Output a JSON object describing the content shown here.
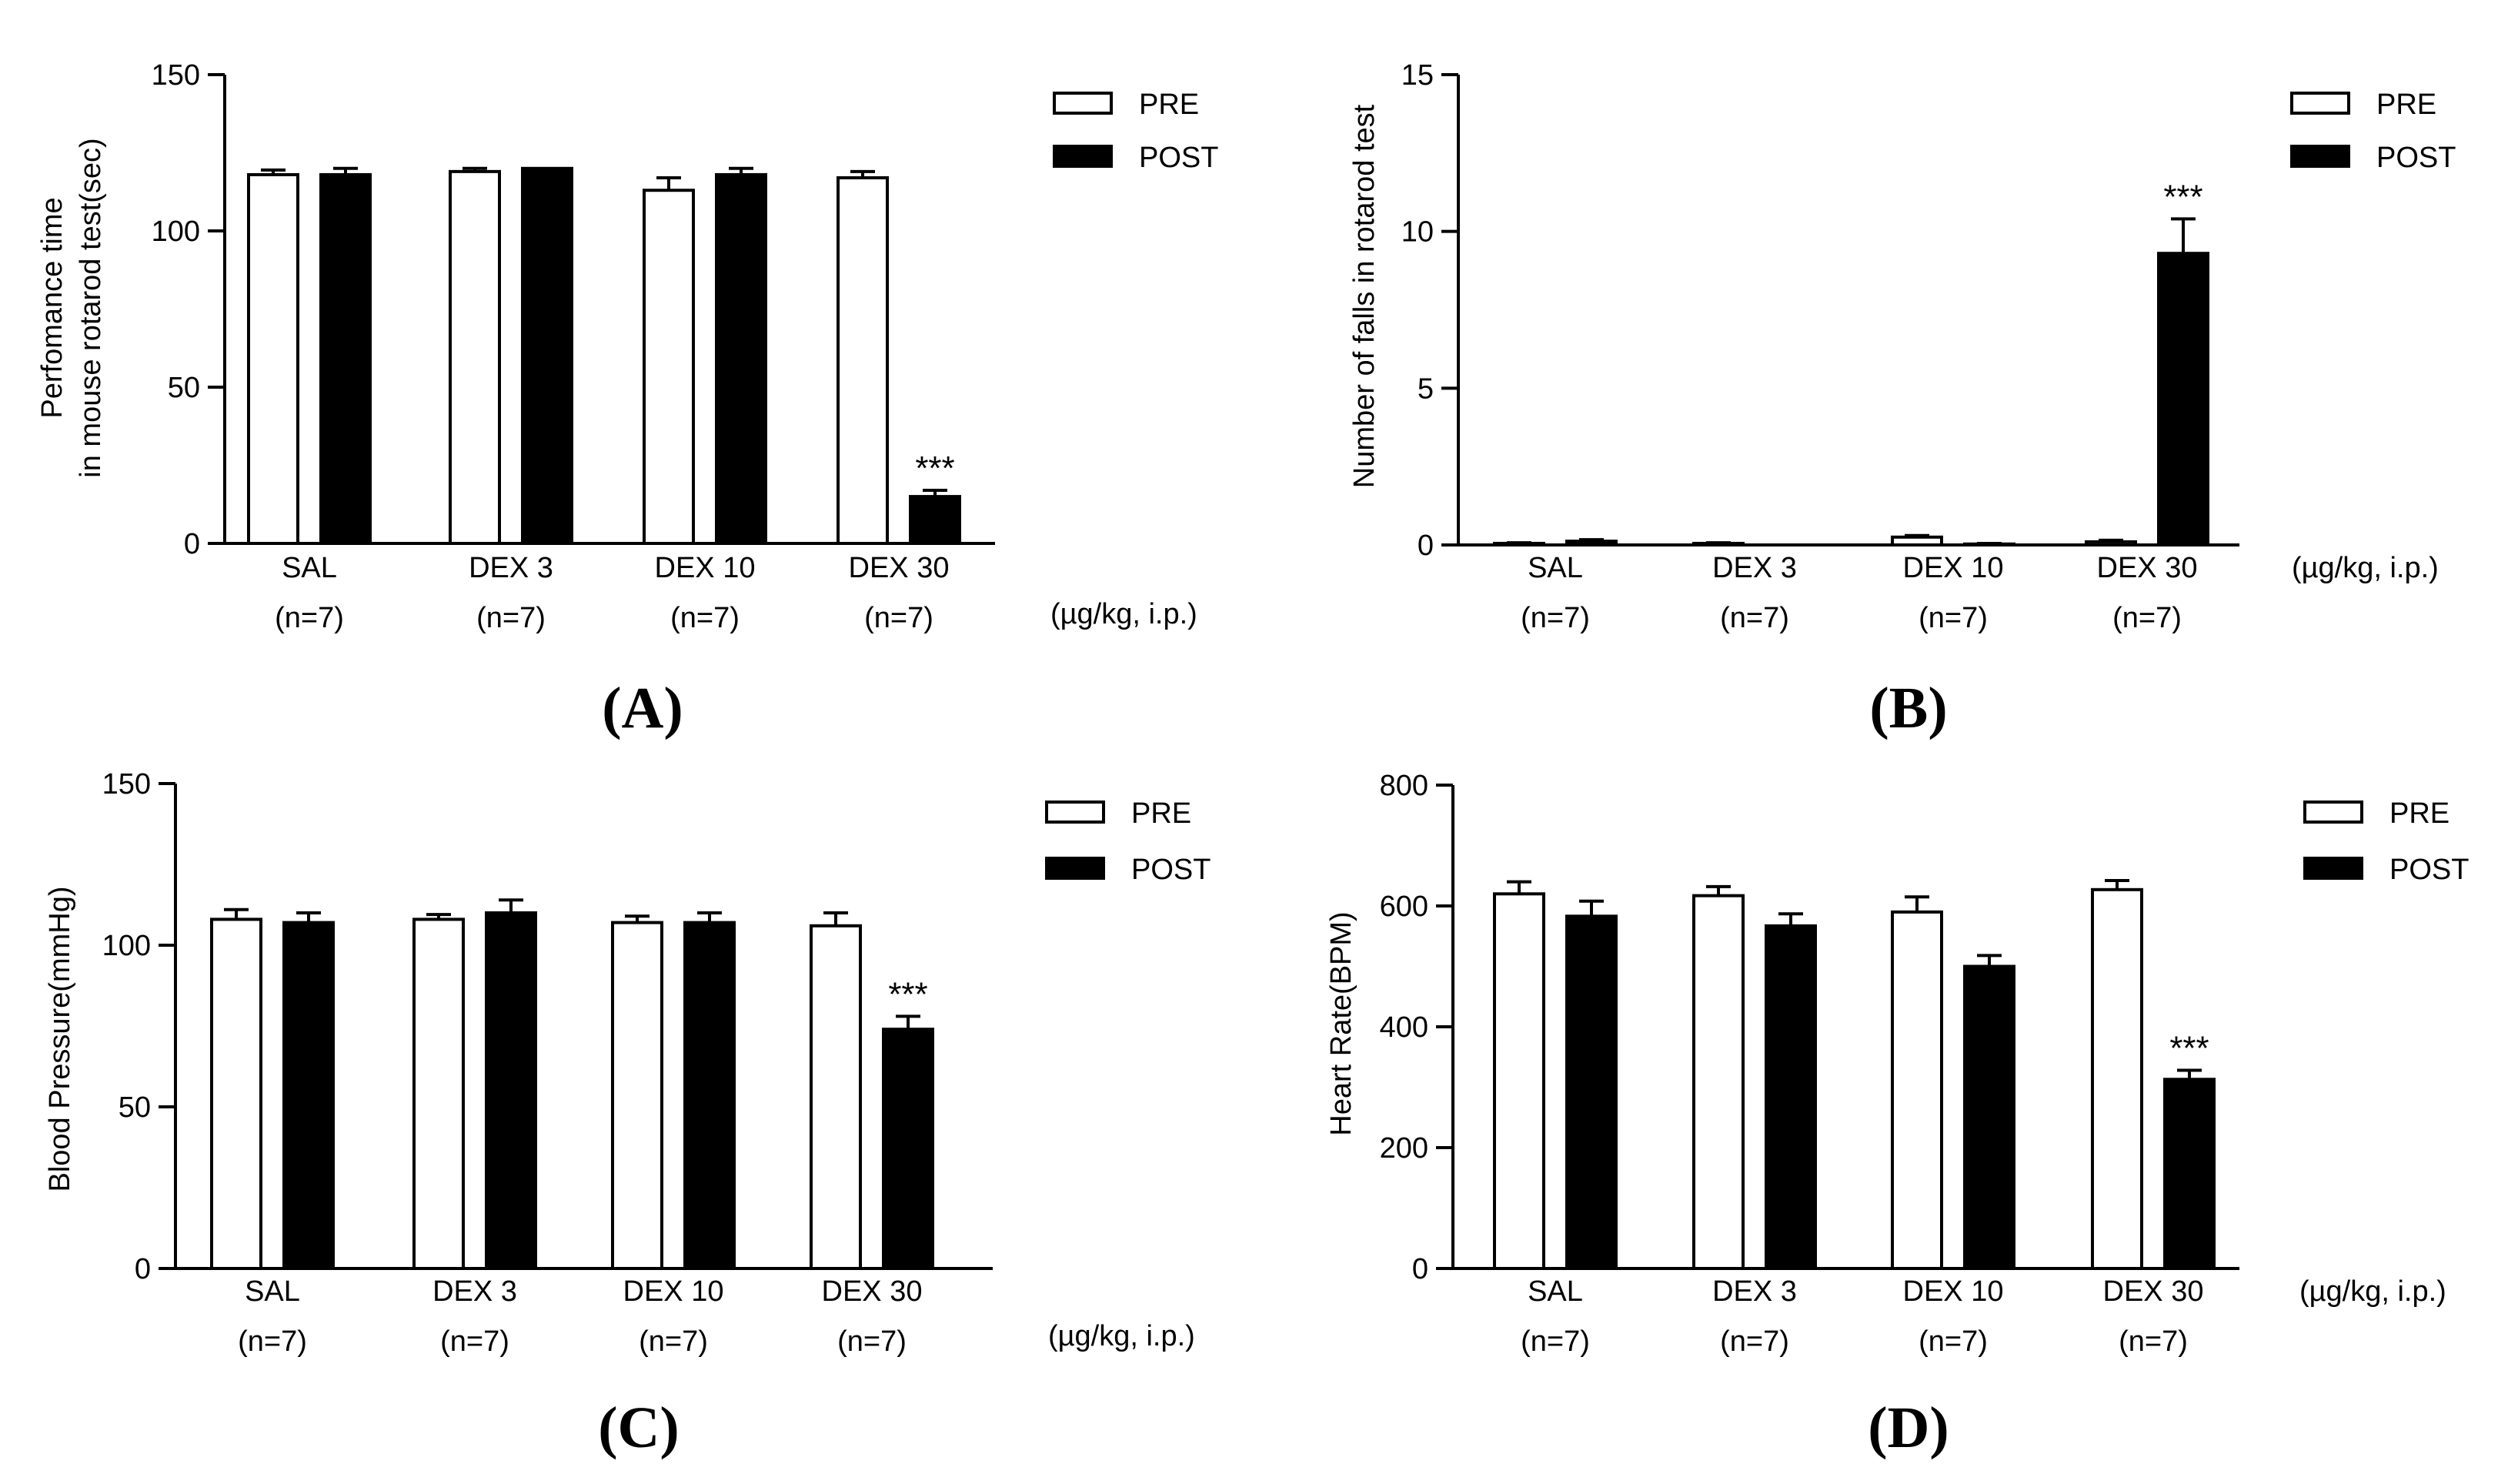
{
  "legend": {
    "pre": "PRE",
    "post": "POST"
  },
  "unit_label": "(µg/kg, i.p.)",
  "significance": "***",
  "chart_data": [
    {
      "panel": "A",
      "panel_label": "(A)",
      "type": "bar",
      "ylabel": [
        "Perfomance time",
        "in mouse rotarod test(sec)"
      ],
      "xlabel": "",
      "ylim": [
        0,
        150
      ],
      "yticks": [
        0,
        50,
        100,
        150
      ],
      "categories": [
        "SAL",
        "DEX 3",
        "DEX 10",
        "DEX 30"
      ],
      "sample_sizes": [
        "(n=7)",
        "(n=7)",
        "(n=7)",
        "(n=7)"
      ],
      "series": [
        {
          "name": "PRE",
          "color": "#ffffff",
          "values": [
            118,
            119,
            113,
            117
          ],
          "errors": [
            1.5,
            1,
            4,
            2
          ]
        },
        {
          "name": "POST",
          "color": "#000000",
          "values": [
            118,
            120,
            118,
            15
          ],
          "errors": [
            2,
            0,
            2,
            2
          ]
        }
      ],
      "annotations": [
        {
          "category": "DEX 30",
          "series": "POST",
          "text": "***"
        }
      ]
    },
    {
      "panel": "B",
      "panel_label": "(B)",
      "type": "bar",
      "ylabel": [
        "Number of falls in rotarod test"
      ],
      "xlabel": "",
      "ylim": [
        0,
        15
      ],
      "yticks": [
        0,
        5,
        10,
        15
      ],
      "categories": [
        "SAL",
        "DEX 3",
        "DEX 10",
        "DEX 30"
      ],
      "sample_sizes": [
        "(n=7)",
        "(n=7)",
        "(n=7)",
        "(n=7)"
      ],
      "series": [
        {
          "name": "PRE",
          "color": "#ffffff",
          "values": [
            0.05,
            0.05,
            0.25,
            0.1
          ],
          "errors": [
            0.02,
            0.02,
            0.05,
            0.05
          ]
        },
        {
          "name": "POST",
          "color": "#000000",
          "values": [
            0.12,
            0,
            0.03,
            9.3
          ],
          "errors": [
            0.05,
            0,
            0.02,
            1.1
          ]
        }
      ],
      "annotations": [
        {
          "category": "DEX 30",
          "series": "POST",
          "text": "***"
        }
      ]
    },
    {
      "panel": "C",
      "panel_label": "(C)",
      "type": "bar",
      "ylabel": [
        "Blood Pressure(mmHg)"
      ],
      "xlabel": "",
      "ylim": [
        0,
        150
      ],
      "yticks": [
        0,
        50,
        100,
        150
      ],
      "categories": [
        "SAL",
        "DEX 3",
        "DEX 10",
        "DEX 30"
      ],
      "sample_sizes": [
        "(n=7)",
        "(n=7)",
        "(n=7)",
        "(n=7)"
      ],
      "series": [
        {
          "name": "PRE",
          "color": "#ffffff",
          "values": [
            108,
            108,
            107,
            106
          ],
          "errors": [
            3,
            1.5,
            2,
            4
          ]
        },
        {
          "name": "POST",
          "color": "#000000",
          "values": [
            107,
            110,
            107,
            74
          ],
          "errors": [
            3,
            4,
            3,
            4
          ]
        }
      ],
      "annotations": [
        {
          "category": "DEX 30",
          "series": "POST",
          "text": "***"
        }
      ]
    },
    {
      "panel": "D",
      "panel_label": "(D)",
      "type": "bar",
      "ylabel": [
        "Heart Rate(BPM)"
      ],
      "xlabel": "",
      "ylim": [
        0,
        800
      ],
      "yticks": [
        0,
        200,
        400,
        600,
        800
      ],
      "categories": [
        "SAL",
        "DEX 3",
        "DEX 10",
        "DEX 30"
      ],
      "sample_sizes": [
        "(n=7)",
        "(n=7)",
        "(n=7)",
        "(n=7)"
      ],
      "series": [
        {
          "name": "PRE",
          "color": "#ffffff",
          "values": [
            620,
            617,
            590,
            627
          ],
          "errors": [
            20,
            15,
            25,
            15
          ]
        },
        {
          "name": "POST",
          "color": "#000000",
          "values": [
            583,
            567,
            500,
            313
          ],
          "errors": [
            25,
            20,
            18,
            15
          ]
        }
      ],
      "annotations": [
        {
          "category": "DEX 30",
          "series": "POST",
          "text": "***"
        }
      ]
    }
  ]
}
